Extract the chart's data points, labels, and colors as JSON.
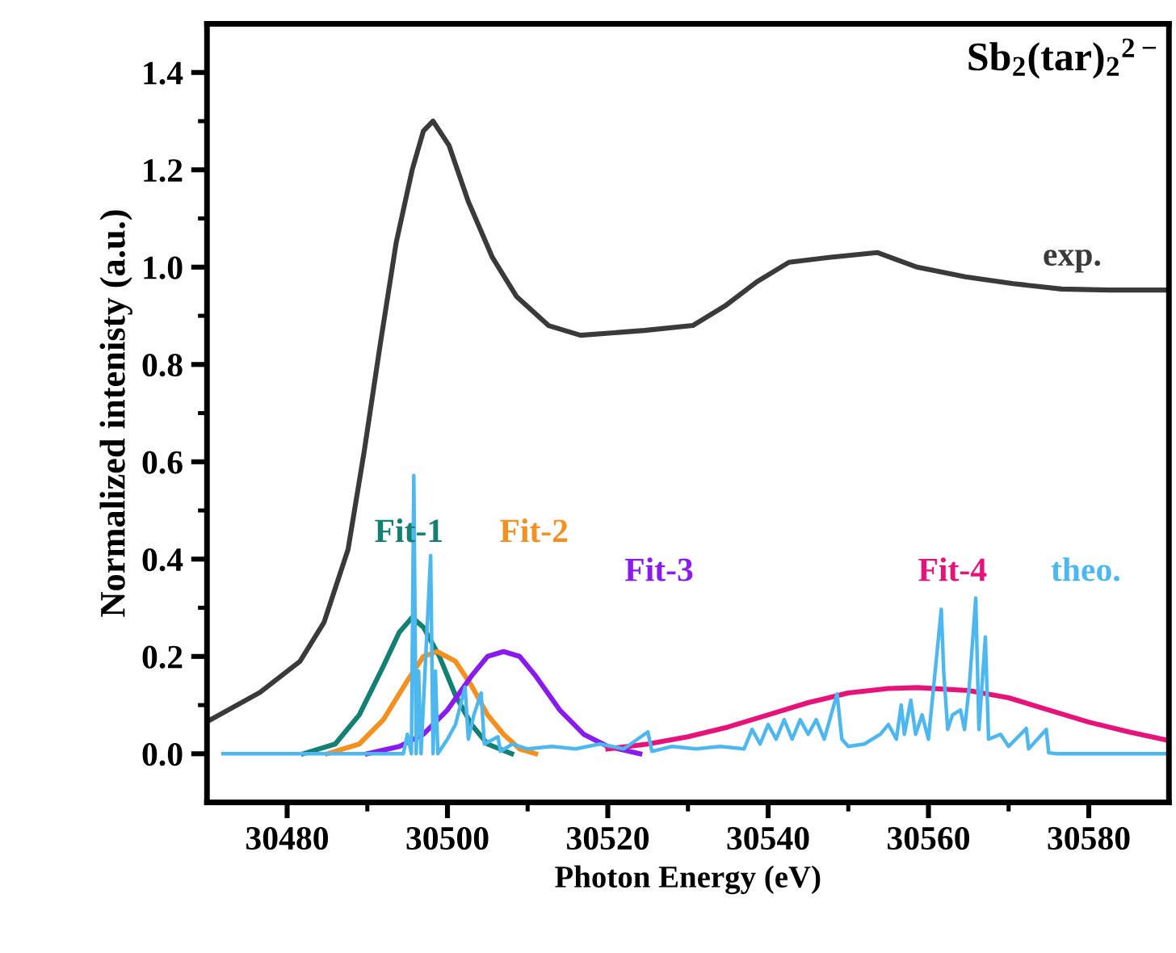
{
  "chart_data": {
    "type": "line",
    "xlabel": "Photon Energy (eV)",
    "ylabel": "Normalized intenisty (a.u.)",
    "annotations": [
      "Sb$_{2}$(tar)$_{2}$$^{2−}$"
    ],
    "xlim": [
      30470,
      30590
    ],
    "ylim": [
      -0.1,
      1.5
    ],
    "xticks": [
      30480,
      {
        "value": 30490,
        "label": null
      },
      30500,
      {
        "value": 30510,
        "label": null
      },
      30520,
      {
        "value": 30530,
        "label": null
      },
      30540,
      {
        "value": 30550,
        "label": null
      },
      30560,
      {
        "value": 30570,
        "label": null
      },
      30580
    ],
    "yticks": [
      {
        "value": 0.0,
        "label": "0.0"
      },
      {
        "value": 0.1,
        "label": null
      },
      0.2,
      {
        "value": 0.3,
        "label": null
      },
      0.4,
      {
        "value": 0.5,
        "label": null
      },
      0.6,
      {
        "value": 0.7,
        "label": null
      },
      0.8,
      {
        "value": 0.9,
        "label": null
      },
      {
        "value": 1.0,
        "label": "1.0"
      },
      {
        "value": 1.1,
        "label": null
      },
      1.2,
      {
        "value": 1.3,
        "label": null
      },
      1.4
    ],
    "grid": false,
    "legend": false,
    "series": [
      {
        "name": "exp.",
        "color": "#3a3a3a",
        "x": [
          30470,
          30476.6,
          30481.6,
          30484.6,
          30487.6,
          30489.6,
          30491.6,
          30493.6,
          30495.6,
          30497,
          30498.2,
          30500.2,
          30502.6,
          30505.6,
          30508.6,
          30512.6,
          30516.6,
          30524.6,
          30530.6,
          30534.6,
          30538.6,
          30542.6,
          30547.6,
          30553.6,
          30558.6,
          30564.6,
          30570.6,
          30576.6,
          30582.6,
          30590
        ],
        "values": [
          0.066,
          0.126,
          0.19,
          0.27,
          0.42,
          0.62,
          0.84,
          1.05,
          1.2,
          1.28,
          1.3,
          1.25,
          1.135,
          1.02,
          0.94,
          0.88,
          0.86,
          0.87,
          0.88,
          0.92,
          0.97,
          1.01,
          1.02,
          1.03,
          1.0,
          0.98,
          0.966,
          0.955,
          0.953,
          0.953
        ]
      },
      {
        "name": "Fit-1",
        "color": "#138074",
        "x": [
          30482,
          30486,
          30489,
          30492,
          30494,
          30495.6,
          30497,
          30499,
          30501,
          30503,
          30505,
          30508
        ],
        "values": [
          0.0,
          0.02,
          0.08,
          0.18,
          0.25,
          0.28,
          0.26,
          0.2,
          0.12,
          0.06,
          0.02,
          0.0
        ]
      },
      {
        "name": "Fit-2",
        "color": "#f5901e",
        "x": [
          30485,
          30489,
          30492,
          30495,
          30497,
          30498.7,
          30501,
          30503,
          30505,
          30507,
          30509,
          30511
        ],
        "values": [
          0.0,
          0.02,
          0.07,
          0.15,
          0.2,
          0.21,
          0.19,
          0.14,
          0.08,
          0.04,
          0.01,
          0.0
        ]
      },
      {
        "name": "Fit-3",
        "color": "#8a1bf0",
        "x": [
          30490,
          30494,
          30497,
          30500,
          30503,
          30505,
          30507,
          30509,
          30511,
          30514,
          30517,
          30520,
          30524
        ],
        "values": [
          0.0,
          0.015,
          0.04,
          0.09,
          0.16,
          0.2,
          0.21,
          0.2,
          0.16,
          0.09,
          0.04,
          0.015,
          0.0
        ]
      },
      {
        "name": "Fit-4",
        "color": "#e8137a",
        "x": [
          30520,
          30525,
          30530,
          30535,
          30540,
          30545,
          30550,
          30555,
          30558.6,
          30565,
          30570,
          30575,
          30580,
          30585,
          30590
        ],
        "values": [
          0.01,
          0.02,
          0.035,
          0.055,
          0.08,
          0.105,
          0.125,
          0.134,
          0.136,
          0.13,
          0.115,
          0.09,
          0.065,
          0.045,
          0.027
        ]
      },
      {
        "name": "theo.",
        "color": "#4db8f0",
        "x": [
          30472,
          30490,
          30494.5,
          30495,
          30495.5,
          30495.8,
          30496.1,
          30496.4,
          30496.7,
          30497.9,
          30498.2,
          30498.5,
          30498.8,
          30500,
          30501,
          30502.2,
          30502.6,
          30503.3,
          30504.2,
          30504.6,
          30506.3,
          30506.6,
          30508.1,
          30510,
          30513,
          30516,
          30519,
          30522,
          30525,
          30525.5,
          30528,
          30531,
          30534,
          30537,
          30538,
          30539,
          30540,
          30541,
          30542,
          30543,
          30544,
          30545,
          30546,
          30547,
          30548.6,
          30549.2,
          30550,
          30552,
          30554,
          30555,
          30556,
          30556.6,
          30557,
          30557.8,
          30558.4,
          30559.2,
          30560,
          30561.6,
          30561.9,
          30562.4,
          30563,
          30564,
          30564.5,
          30565.1,
          30565.9,
          30566.3,
          30567.1,
          30567.5,
          30569,
          30570,
          30572.2,
          30572.5,
          30574.7,
          30575,
          30576,
          30590
        ],
        "values": [
          0,
          0,
          0,
          0.04,
          0,
          0.572,
          0,
          0.17,
          0,
          0.407,
          0,
          0.17,
          0,
          0.03,
          0.06,
          0.137,
          0.03,
          0.08,
          0.125,
          0.02,
          0.035,
          0.005,
          0.02,
          0.01,
          0.015,
          0.01,
          0.02,
          0.01,
          0.045,
          0.005,
          0.015,
          0.01,
          0.015,
          0.01,
          0.05,
          0.02,
          0.06,
          0.03,
          0.07,
          0.03,
          0.07,
          0.04,
          0.07,
          0.03,
          0.123,
          0.03,
          0.015,
          0.02,
          0.04,
          0.06,
          0.03,
          0.1,
          0.04,
          0.11,
          0.04,
          0.08,
          0.03,
          0.297,
          0.17,
          0.05,
          0.08,
          0.09,
          0.05,
          0.14,
          0.32,
          0.05,
          0.24,
          0.03,
          0.04,
          0.015,
          0.052,
          0.01,
          0.05,
          0.002,
          0,
          0
        ]
      }
    ]
  }
}
